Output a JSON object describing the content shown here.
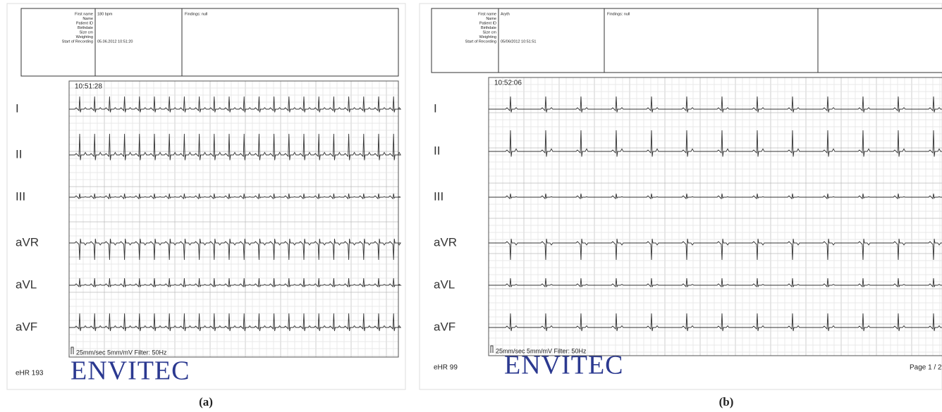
{
  "panels": [
    {
      "header": {
        "fields": [
          {
            "label": "First name",
            "value": "180 bpm"
          },
          {
            "label": "Name"
          },
          {
            "label": "Patient ID"
          },
          {
            "label": "Birthdate"
          },
          {
            "label": "Size cm"
          },
          {
            "label": "Weighting"
          },
          {
            "label": "Start of Recording",
            "value": "05.06.2012 10:51:20"
          }
        ],
        "findings": "Findings: null"
      },
      "time": "10:51:28",
      "leads": [
        "I",
        "II",
        "III",
        "aVR",
        "aVL",
        "aVF"
      ],
      "settings": "25mm/sec 5mm/mV  Filter: 50Hz",
      "ehr": "eHR 193",
      "logo": "ENVITEC",
      "caption": "(a)"
    },
    {
      "header": {
        "fields": [
          {
            "label": "First name",
            "value": "Aryth"
          },
          {
            "label": "Name"
          },
          {
            "label": "Patient ID"
          },
          {
            "label": "Birthdate"
          },
          {
            "label": "Size cm"
          },
          {
            "label": "Weighting"
          },
          {
            "label": "Start of Recording",
            "value": "05/06/2012 10:51:51"
          }
        ],
        "findings": "Findings: null"
      },
      "time": "10:52:06",
      "leads": [
        "I",
        "II",
        "III",
        "aVR",
        "aVL",
        "aVF"
      ],
      "settings": "25mm/sec 5mm/mV  Filter: 50Hz",
      "ehr": "eHR 99",
      "logo": "ENVITEC",
      "page": "Page 1 / 2",
      "caption": "(b)"
    }
  ]
}
